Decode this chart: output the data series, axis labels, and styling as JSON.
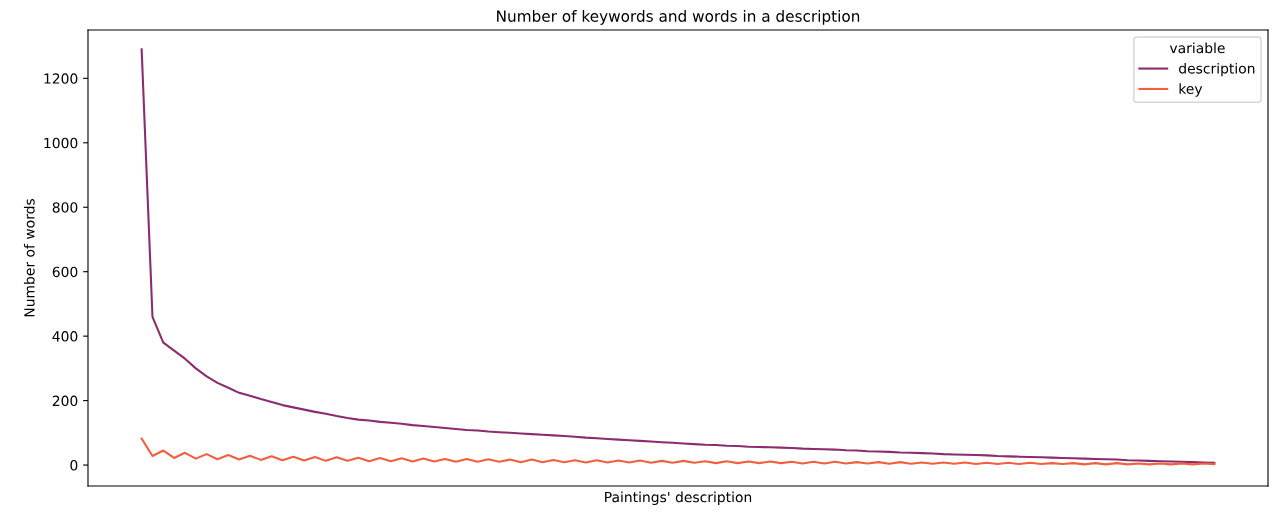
{
  "chart_data": {
    "type": "line",
    "title": "Number of keywords and words in a description",
    "xlabel": "Paintings' description",
    "ylabel": "Number of words",
    "legend_title": "variable",
    "legend": "top right",
    "grid": false,
    "tick_labels": "y",
    "categories": [
      null,
      null,
      null,
      null,
      null,
      null,
      null,
      null,
      null,
      null,
      null,
      null,
      null,
      null,
      null,
      null,
      null,
      null,
      null,
      null,
      null,
      null,
      null,
      null,
      null,
      null,
      null,
      null,
      null,
      null,
      null,
      null,
      null,
      null,
      null,
      null,
      null,
      null,
      null,
      null,
      null,
      null,
      null,
      null,
      null,
      null,
      null,
      null,
      null,
      null,
      null,
      null,
      null,
      null,
      null,
      null,
      null,
      null,
      null,
      null,
      null,
      null,
      null,
      null,
      null,
      null,
      null,
      null,
      null,
      null,
      null,
      null,
      null,
      null,
      null,
      null,
      null,
      null,
      null,
      null,
      null,
      null,
      null,
      null,
      null,
      null,
      null,
      null,
      null,
      null,
      null,
      null,
      null,
      null,
      null,
      null,
      null,
      null,
      null,
      null
    ],
    "ylim": [
      -65,
      1350
    ],
    "yticks": [
      0,
      200,
      400,
      600,
      800,
      1000,
      1200
    ],
    "series": [
      {
        "name": "description",
        "color": "#8b2c6e",
        "values": [
          1290,
          460,
          380,
          355,
          330,
          300,
          275,
          255,
          240,
          224,
          215,
          205,
          196,
          186,
          179,
          172,
          165,
          159,
          152,
          146,
          141,
          138,
          134,
          131,
          128,
          124,
          121,
          118,
          115,
          112,
          109,
          107,
          104,
          102,
          100,
          98,
          96,
          94,
          92,
          90,
          88,
          85,
          83,
          81,
          79,
          77,
          75,
          73,
          71,
          69,
          67,
          65,
          63,
          62,
          60,
          59,
          57,
          56,
          55,
          54,
          53,
          51,
          50,
          49,
          48,
          46,
          45,
          43,
          42,
          41,
          39,
          38,
          37,
          36,
          34,
          33,
          32,
          31,
          30,
          28,
          27,
          26,
          25,
          24,
          23,
          22,
          21,
          20,
          19,
          18,
          17,
          15,
          14,
          13,
          12,
          11,
          10,
          9,
          8,
          7
        ]
      },
      {
        "name": "key",
        "color": "#f0603f",
        "values": [
          82,
          28,
          45,
          22,
          38,
          20,
          34,
          18,
          31,
          17,
          29,
          16,
          27,
          15,
          26,
          14,
          25,
          13,
          24,
          13,
          23,
          12,
          22,
          12,
          21,
          11,
          20,
          11,
          19,
          10,
          19,
          10,
          18,
          10,
          17,
          9,
          17,
          9,
          16,
          9,
          15,
          8,
          15,
          8,
          14,
          8,
          14,
          7,
          13,
          7,
          13,
          7,
          12,
          6,
          12,
          6,
          11,
          6,
          11,
          6,
          10,
          5,
          10,
          5,
          10,
          5,
          9,
          5,
          9,
          4,
          9,
          4,
          8,
          4,
          8,
          4,
          8,
          3,
          7,
          3,
          7,
          3,
          7,
          3,
          6,
          3,
          6,
          2,
          6,
          2,
          6,
          2,
          5,
          2,
          5,
          2,
          5,
          2,
          5,
          3
        ]
      }
    ]
  }
}
